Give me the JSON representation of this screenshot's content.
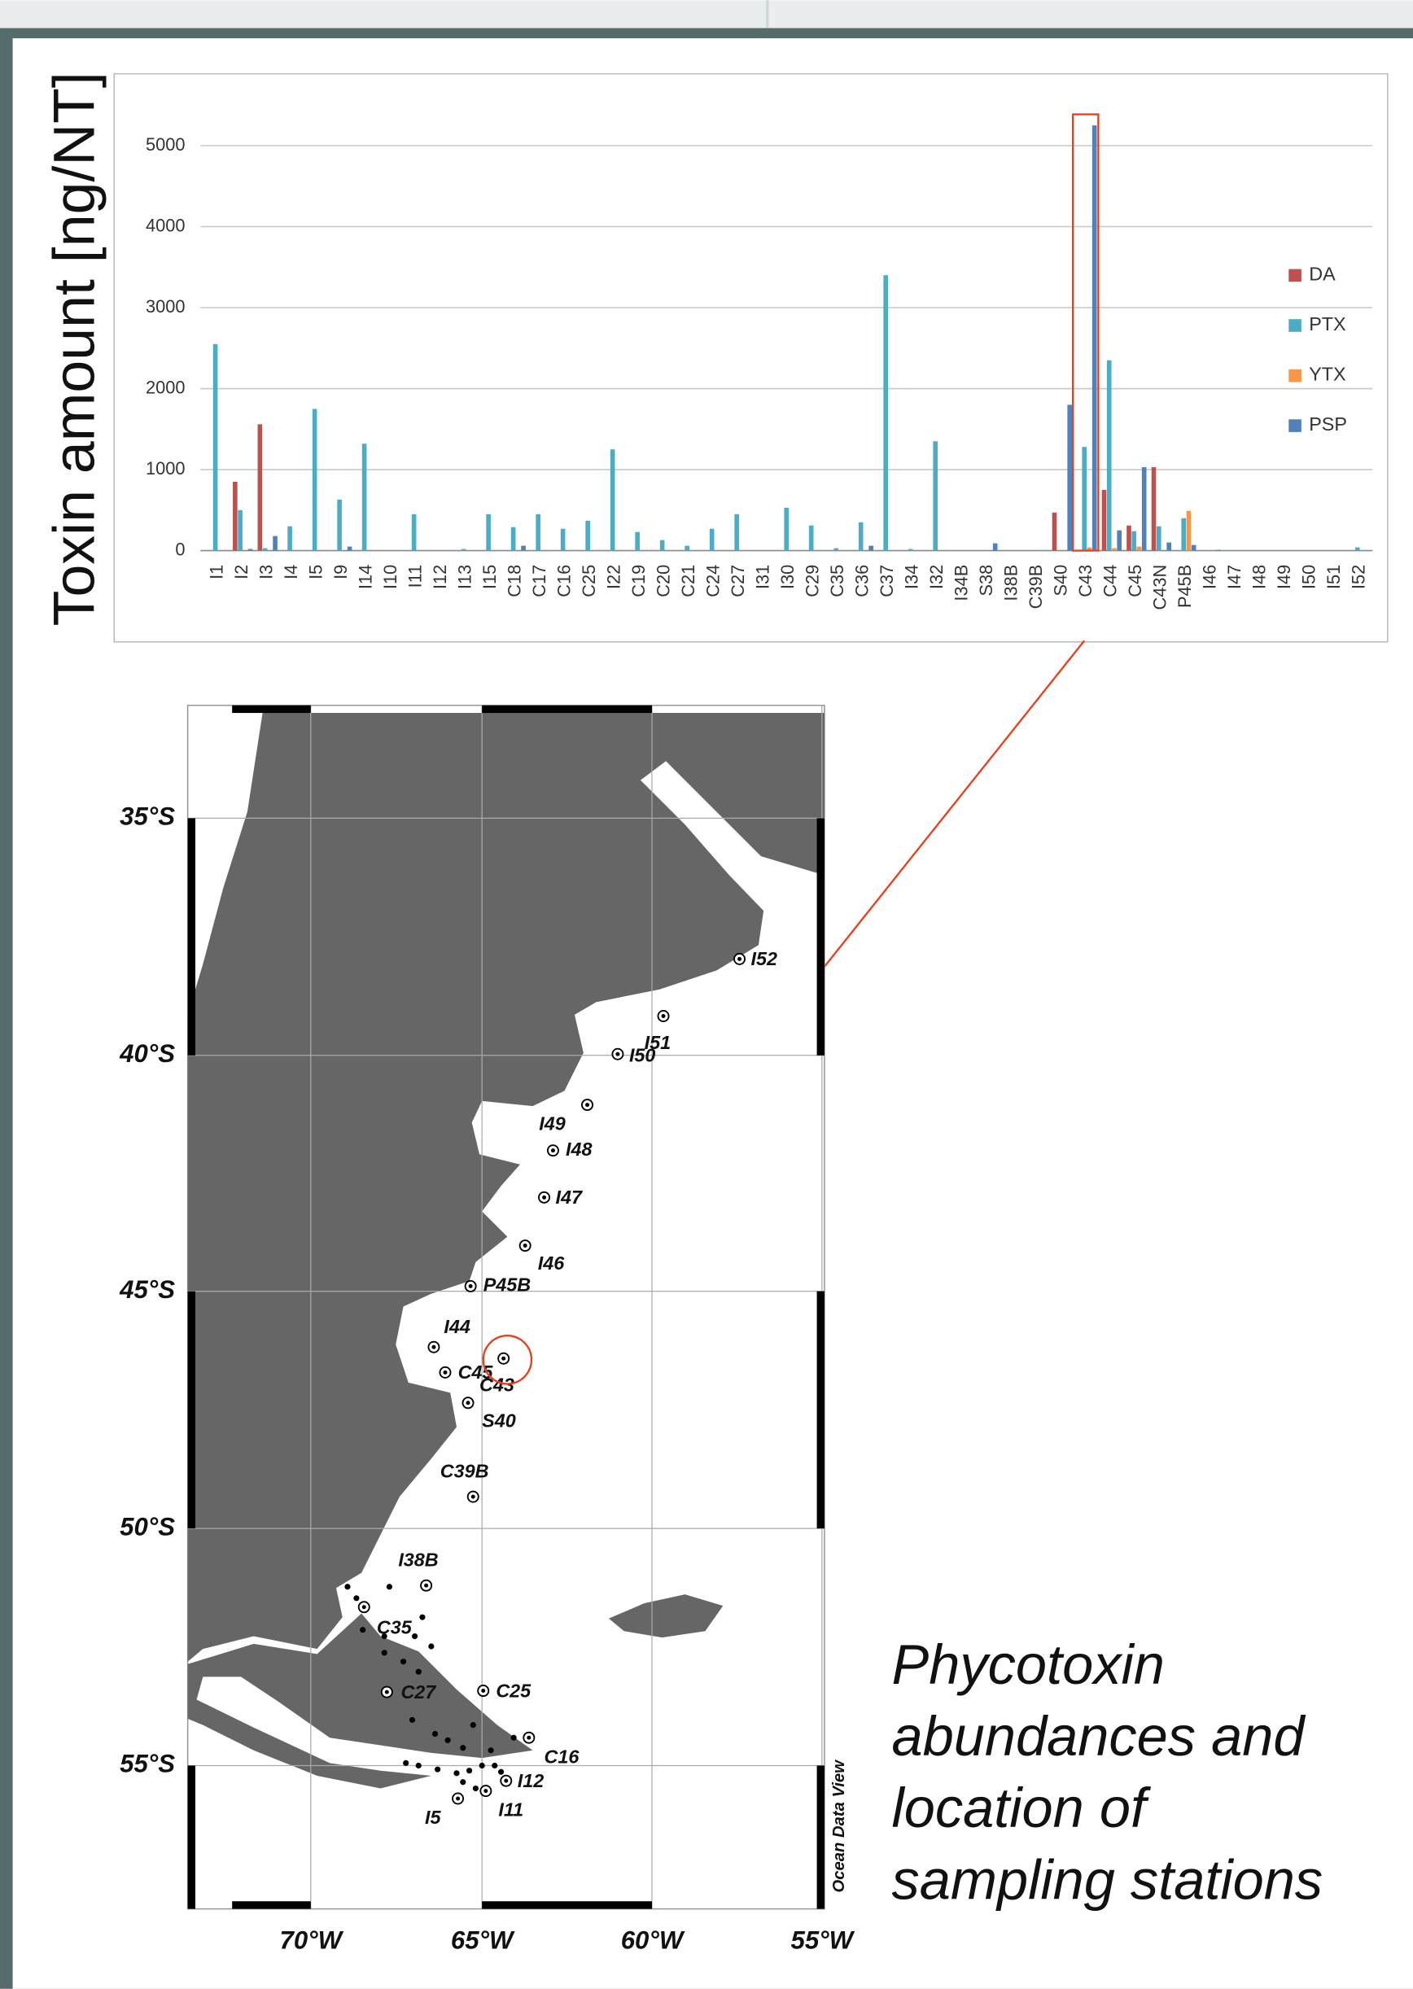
{
  "chart_data": {
    "type": "bar",
    "y_label": "Toxin amount [ng/NT]",
    "categories": [
      "I1",
      "I2",
      "I3",
      "I4",
      "I5",
      "I9",
      "I14",
      "I10",
      "I11",
      "I12",
      "I13",
      "I15",
      "C18",
      "C17",
      "C16",
      "C25",
      "I22",
      "C19",
      "C20",
      "C21",
      "C24",
      "C27",
      "I31",
      "I30",
      "C29",
      "C35",
      "C36",
      "C37",
      "I34",
      "I32",
      "I34B",
      "S38",
      "I38B",
      "C39B",
      "S40",
      "C43",
      "C44",
      "C45",
      "C43N",
      "P45B",
      "I46",
      "I47",
      "I48",
      "I49",
      "I50",
      "I51",
      "I52"
    ],
    "series": [
      {
        "name": "DA",
        "color": "#c0504d",
        "values": [
          0,
          850,
          1560,
          0,
          0,
          0,
          0,
          0,
          0,
          0,
          0,
          0,
          0,
          0,
          0,
          0,
          0,
          0,
          0,
          0,
          0,
          0,
          0,
          0,
          0,
          0,
          0,
          0,
          0,
          0,
          0,
          0,
          0,
          0,
          470,
          0,
          750,
          310,
          1030,
          0,
          0,
          0,
          0,
          0,
          0,
          0,
          0
        ]
      },
      {
        "name": "PTX",
        "color": "#4bacc6",
        "values": [
          2550,
          500,
          30,
          300,
          1750,
          630,
          1320,
          0,
          450,
          0,
          20,
          450,
          290,
          450,
          270,
          370,
          1250,
          230,
          130,
          60,
          270,
          450,
          0,
          530,
          310,
          30,
          350,
          3400,
          20,
          1350,
          0,
          0,
          0,
          0,
          0,
          1280,
          2350,
          240,
          300,
          400,
          0,
          0,
          0,
          0,
          0,
          0,
          40
        ]
      },
      {
        "name": "YTX",
        "color": "#f79646",
        "values": [
          0,
          0,
          0,
          0,
          0,
          0,
          0,
          0,
          0,
          0,
          0,
          0,
          0,
          0,
          0,
          0,
          0,
          0,
          0,
          0,
          0,
          0,
          0,
          0,
          0,
          0,
          0,
          0,
          0,
          0,
          0,
          0,
          0,
          0,
          0,
          40,
          30,
          50,
          0,
          490,
          0,
          0,
          0,
          0,
          0,
          0,
          0
        ]
      },
      {
        "name": "PSP",
        "color": "#4f81bd",
        "values": [
          0,
          20,
          180,
          0,
          0,
          50,
          0,
          0,
          0,
          0,
          0,
          0,
          60,
          0,
          0,
          0,
          0,
          0,
          0,
          0,
          0,
          0,
          0,
          0,
          0,
          0,
          60,
          0,
          0,
          0,
          0,
          90,
          0,
          0,
          1800,
          5250,
          250,
          1030,
          100,
          70,
          10,
          0,
          0,
          0,
          0,
          0,
          0
        ]
      }
    ],
    "ylim": [
      0,
      5700
    ],
    "yticks": [
      0,
      1000,
      2000,
      3000,
      4000,
      5000
    ],
    "grid": true,
    "legend": "right"
  },
  "map": {
    "stations": [
      "I52",
      "I51",
      "I50",
      "I49",
      "I48",
      "I47",
      "I46",
      "P45B",
      "I44",
      "C45",
      "C43",
      "S40",
      "C39B",
      "I38B",
      "C35",
      "C27",
      "C25",
      "C16",
      "I12",
      "I11",
      "I5"
    ],
    "lat_labels": [
      "35°S",
      "40°S",
      "45°S",
      "50°S",
      "55°S"
    ],
    "lon_labels": [
      "70°W",
      "65°W",
      "60°W",
      "55°W"
    ],
    "credit": "Ocean Data View"
  },
  "caption": {
    "lines": [
      "Phycotoxin",
      "abundances and",
      "location of",
      "sampling stations"
    ]
  }
}
